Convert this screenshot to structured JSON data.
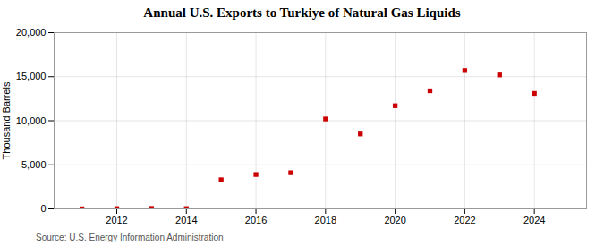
{
  "chart_data": {
    "type": "scatter",
    "title": "Annual U.S. Exports to Turkiye of Natural Gas Liquids",
    "ylabel": "Thousand Barrels",
    "source": "Source: U.S. Energy Information Administration",
    "x": [
      2011,
      2012,
      2013,
      2014,
      2015,
      2016,
      2017,
      2018,
      2019,
      2020,
      2021,
      2022,
      2023,
      2024
    ],
    "values": [
      5,
      30,
      50,
      30,
      3300,
      3900,
      4100,
      10200,
      8500,
      11700,
      13400,
      15700,
      15200,
      13100
    ],
    "color": "#cc0000",
    "marker": "square",
    "xlim": [
      2010.2,
      2025.5
    ],
    "xticks": [
      2012,
      2014,
      2016,
      2018,
      2020,
      2022,
      2024
    ],
    "ylim": [
      0,
      20000
    ],
    "yticks": [
      0,
      {
        "value": 5000,
        "label": "5,000"
      },
      {
        "value": 10000,
        "label": "10,000"
      },
      {
        "value": 15000,
        "label": "15,000"
      },
      {
        "value": 20000,
        "label": "20,000"
      }
    ],
    "grid": true
  }
}
